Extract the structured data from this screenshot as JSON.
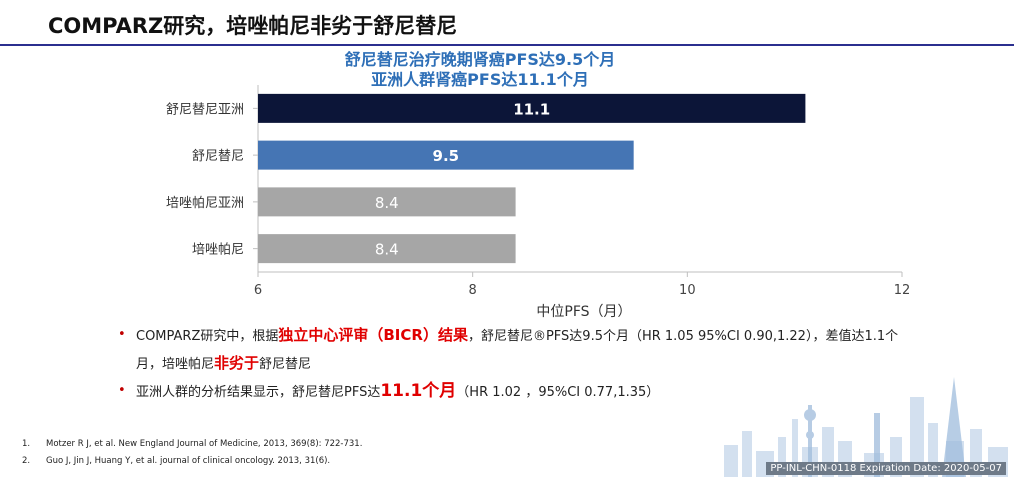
{
  "slide": {
    "title": "COMPARZ研究，培唑帕尼非劣于舒尼替尼"
  },
  "chart_data": {
    "type": "bar",
    "orientation": "horizontal",
    "title": [
      "舒尼替尼治疗晚期肾癌PFS达9.5个月",
      "亚洲人群肾癌PFS达11.1个月"
    ],
    "categories": [
      "舒尼替尼亚洲",
      "舒尼替尼",
      "培唑帕尼亚洲",
      "培唑帕尼"
    ],
    "values": [
      11.1,
      9.5,
      8.4,
      8.4
    ],
    "value_labels": [
      "11.1",
      "9.5",
      "8.4",
      "8.4"
    ],
    "colors": [
      "#0c1538",
      "#4575b4",
      "#a6a6a6",
      "#a6a6a6"
    ],
    "xlabel": "中位PFS（月）",
    "xlim": [
      6,
      12
    ],
    "xticks": [
      6,
      8,
      10,
      12
    ],
    "tick_labels": [
      "6",
      "8",
      "10",
      "12"
    ],
    "grid": false,
    "legend": "none"
  },
  "bullets": [
    {
      "parts": [
        {
          "text": "COMPARZ研究中，根据",
          "style": "normal"
        },
        {
          "text": "独立中心评审（BICR）结果",
          "style": "hl"
        },
        {
          "text": "，舒尼替尼®PFS达9.5个月（HR 1.05 95%CI 0.90,1.22），差值达1.1个月，培唑帕尼",
          "style": "normal"
        },
        {
          "text": "非劣于",
          "style": "hl"
        },
        {
          "text": "舒尼替尼",
          "style": "normal"
        }
      ]
    },
    {
      "parts": [
        {
          "text": "亚洲人群的分析结果显示，舒尼替尼PFS达",
          "style": "normal"
        },
        {
          "text": "11.1个月",
          "style": "hl-big"
        },
        {
          "text": "（HR 1.02 ，95%CI 0.77,1.35）",
          "style": "normal"
        }
      ]
    }
  ],
  "references": [
    {
      "num": "1.",
      "text": "Motzer R J, et al. New England Journal of Medicine, 2013, 369(8): 722-731."
    },
    {
      "num": "2.",
      "text": "Guo J, Jin J, Huang Y, et al. journal of clinical oncology. 2013, 31(6)."
    }
  ],
  "footer": {
    "code": "PP-INL-CHN-0118 Expiration Date: 2020-05-07"
  }
}
